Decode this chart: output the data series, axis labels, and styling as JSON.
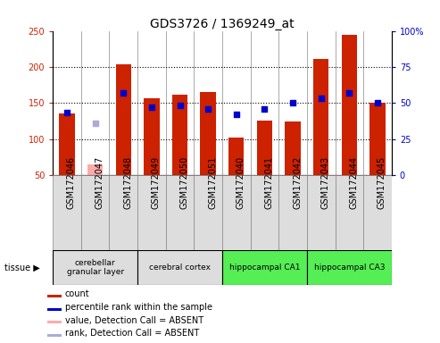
{
  "title": "GDS3726 / 1369249_at",
  "samples": [
    "GSM172046",
    "GSM172047",
    "GSM172048",
    "GSM172049",
    "GSM172050",
    "GSM172051",
    "GSM172040",
    "GSM172041",
    "GSM172042",
    "GSM172043",
    "GSM172044",
    "GSM172045"
  ],
  "count_values": [
    135,
    null,
    203,
    157,
    162,
    165,
    102,
    125,
    124,
    211,
    244,
    150
  ],
  "absent_count_values": [
    null,
    65,
    null,
    null,
    null,
    null,
    null,
    null,
    null,
    null,
    null,
    null
  ],
  "rank_values": [
    43,
    null,
    57,
    47,
    48,
    46,
    42,
    46,
    50,
    53,
    57,
    50
  ],
  "absent_rank_values": [
    null,
    36,
    null,
    null,
    null,
    null,
    null,
    null,
    null,
    null,
    null,
    null
  ],
  "tissue_groups": [
    {
      "label": "cerebellar\ngranular layer",
      "start": 0,
      "end": 3,
      "color": "#dddddd"
    },
    {
      "label": "cerebral cortex",
      "start": 3,
      "end": 6,
      "color": "#dddddd"
    },
    {
      "label": "hippocampal CA1",
      "start": 6,
      "end": 9,
      "color": "#55ee55"
    },
    {
      "label": "hippocampal CA3",
      "start": 9,
      "end": 12,
      "color": "#55ee55"
    }
  ],
  "left_ylim": [
    50,
    250
  ],
  "right_ylim": [
    0,
    100
  ],
  "left_yticks": [
    50,
    100,
    150,
    200,
    250
  ],
  "right_yticks": [
    0,
    25,
    50,
    75,
    100
  ],
  "bar_color": "#cc2200",
  "absent_bar_color": "#ffaaaa",
  "dot_color": "#0000cc",
  "absent_dot_color": "#aaaadd",
  "left_tick_color": "#cc2200",
  "right_tick_color": "#0000cc",
  "title_fontsize": 10,
  "tick_fontsize": 7,
  "legend_fontsize": 7,
  "bar_width": 0.55,
  "dot_size": 18,
  "grid_lines": [
    100,
    150,
    200
  ],
  "grid_color": "#000000",
  "grid_linestyle": ":"
}
